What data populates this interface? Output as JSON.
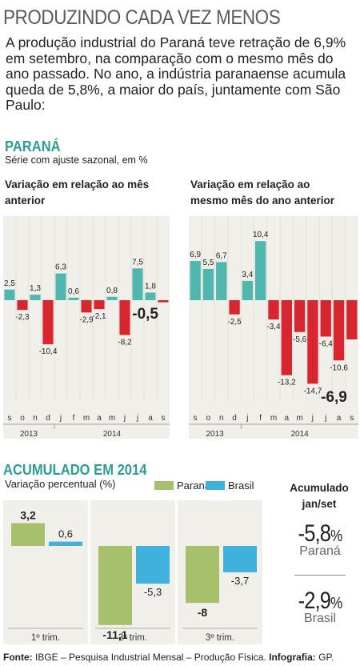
{
  "title": "PRODUZINDO CADA VEZ MENOS",
  "intro": "A produção industrial do Paraná teve retração de 6,9% em setembro, na comparação com o mesmo mês do ano passado. No ano, a indústria paranaense acumula queda de 5,8%, a maior do país, juntamente com São Paulo:",
  "parana_section": {
    "heading": "PARANÁ",
    "subtitle": "Série com ajuste sazonal, em %"
  },
  "accum_section": {
    "heading": "ACUMULADO EM 2014",
    "subtitle": "Variação percentual (%)",
    "legend": [
      "Paraná",
      "Brasil"
    ],
    "cumulative_title": "Acumulado jan/set",
    "parana_value": "-5,8",
    "parana_pct": "%",
    "parana_label": "Paraná",
    "brasil_value": "-2,9",
    "brasil_pct": "%",
    "brasil_label": "Brasil"
  },
  "footer": {
    "bold1": "Fonte:",
    "text1": " IBGE – Pesquisa Industrial Mensal – Produção Física. ",
    "bold2": "Infografia:",
    "text2": " GP."
  },
  "colors": {
    "teal": "#4fb7ad",
    "red": "#d7262f",
    "green": "#a7c06c",
    "blue": "#3fb1dc",
    "panel": "#f1efe9"
  },
  "chart_data": [
    {
      "type": "bar",
      "title": "Variação em relação ao mês anterior",
      "categories": [
        "s",
        "o",
        "n",
        "d",
        "j",
        "f",
        "m",
        "a",
        "m",
        "j",
        "j",
        "a",
        "s"
      ],
      "values": [
        2.5,
        -2.3,
        1.3,
        -10.4,
        6.3,
        0.6,
        -2.9,
        -2.1,
        0.8,
        -8.2,
        7.5,
        1.8,
        -0.5
      ],
      "labels": [
        "2,5",
        "-2,3",
        "1,3",
        "-10,4",
        "6,3",
        "0,6",
        "-2,9",
        "-2,1",
        "0,8",
        "-8,2",
        "7,5",
        "1,8",
        "-0,5"
      ],
      "year_groups": [
        {
          "label": "2013",
          "count": 4
        },
        {
          "label": "2014",
          "count": 9
        }
      ],
      "ylim": [
        -12,
        12
      ]
    },
    {
      "type": "bar",
      "title": "Variação em relação ao mesmo mês do ano anterior",
      "categories": [
        "s",
        "o",
        "n",
        "d",
        "j",
        "f",
        "m",
        "a",
        "m",
        "j",
        "j",
        "a",
        "s"
      ],
      "values": [
        6.9,
        5.5,
        6.7,
        -2.5,
        3.4,
        10.4,
        -3.4,
        -13.2,
        -5.6,
        -14.7,
        -6.4,
        -10.6,
        -6.9
      ],
      "labels": [
        "6,9",
        "5,5",
        "6,7",
        "-2,5",
        "3,4",
        "10,4",
        "-3,4",
        "-13,2",
        "-5,6",
        "-14,7",
        "-6,4",
        "-10,6",
        "-6,9"
      ],
      "year_groups": [
        {
          "label": "2013",
          "count": 4
        },
        {
          "label": "2014",
          "count": 9
        }
      ],
      "ylim": [
        -15,
        11
      ]
    },
    {
      "type": "bar",
      "categories": [
        "1º trim.",
        "2º trim.",
        "3º trim."
      ],
      "series": [
        {
          "name": "Paraná",
          "values": [
            3.2,
            -11.1,
            -8
          ],
          "labels": [
            "3,2",
            "-11,1",
            "-8"
          ]
        },
        {
          "name": "Brasil",
          "values": [
            0.6,
            -5.3,
            -3.7
          ],
          "labels": [
            "0,6",
            "-5,3",
            "-3,7"
          ]
        }
      ],
      "ylim": [
        -12,
        4
      ]
    }
  ]
}
